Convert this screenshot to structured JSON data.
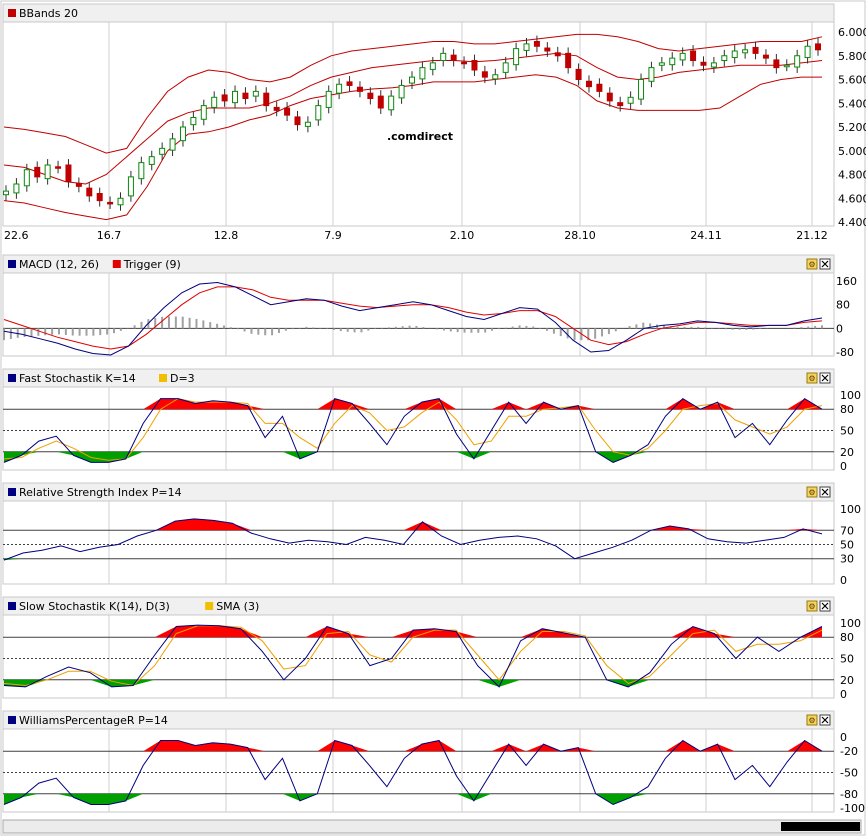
{
  "colors": {
    "frame": "#c8c8c8",
    "header_bg": "#f0f0f0",
    "grid": "#d0d0d0",
    "bb_line": "#c00000",
    "candle_up": "#0a8a0a",
    "candle_down": "#c00000",
    "macd": "#000080",
    "trigger": "#e00000",
    "hist": "#a0a0a0",
    "osc": "#000080",
    "signal": "#f0a000",
    "fill_high": "#ff0000",
    "fill_low": "#00a000",
    "watermark": "#e6ddd0"
  },
  "watermark": ".comdirect",
  "x_labels": [
    "22.6",
    "16.7",
    "12.8",
    "7.9",
    "2.10",
    "28.10",
    "24.11",
    "21.12"
  ],
  "panels": [
    {
      "id": "bbands",
      "legend": [
        {
          "label": "BBands 20",
          "color": "#c00000"
        }
      ],
      "yticks": [
        "6.000",
        "5.800",
        "5.600",
        "5.400",
        "5.200",
        "5.000",
        "4.800",
        "4.600",
        "4.400"
      ],
      "buttons": false
    },
    {
      "id": "macd",
      "legend": [
        {
          "label": "MACD (12, 26)",
          "color": "#000080"
        },
        {
          "label": "Trigger (9)",
          "color": "#e00000"
        }
      ],
      "yticks": [
        "160",
        "80",
        "0",
        "-80"
      ],
      "buttons": true
    },
    {
      "id": "fstoch",
      "legend": [
        {
          "label": "Fast Stochastik K=14",
          "color": "#000080"
        },
        {
          "label": "D=3",
          "color": "#f0c000"
        }
      ],
      "yticks": [
        "100",
        "80",
        "50",
        "20",
        "0"
      ],
      "buttons": true
    },
    {
      "id": "rsi",
      "legend": [
        {
          "label": "Relative Strength Index P=14",
          "color": "#000080"
        }
      ],
      "yticks": [
        "100",
        "70",
        "50",
        "30",
        "0"
      ],
      "buttons": true
    },
    {
      "id": "sstoch",
      "legend": [
        {
          "label": "Slow Stochastik K(14), D(3)",
          "color": "#000080"
        },
        {
          "label": "SMA (3)",
          "color": "#f0c000"
        }
      ],
      "yticks": [
        "100",
        "80",
        "50",
        "20",
        "0"
      ],
      "buttons": true
    },
    {
      "id": "willr",
      "legend": [
        {
          "label": "WilliamsPercentageR P=14",
          "color": "#000080"
        }
      ],
      "yticks": [
        "0",
        "-20",
        "-50",
        "-80",
        "-100"
      ],
      "buttons": true
    }
  ],
  "chart_data": [
    {
      "type": "candlestick",
      "title": "BBands 20",
      "ylim": [
        4.4,
        6.0
      ],
      "x_labels": [
        "22.6",
        "16.7",
        "12.8",
        "7.9",
        "2.10",
        "28.10",
        "24.11",
        "21.12"
      ],
      "close": [
        4.66,
        4.72,
        4.84,
        4.78,
        4.88,
        4.86,
        4.74,
        4.7,
        4.62,
        4.58,
        4.56,
        4.6,
        4.78,
        4.9,
        4.95,
        5.02,
        5.1,
        5.2,
        5.28,
        5.38,
        5.45,
        5.42,
        5.5,
        5.44,
        5.5,
        5.38,
        5.34,
        5.3,
        5.22,
        5.24,
        5.38,
        5.5,
        5.56,
        5.55,
        5.5,
        5.44,
        5.36,
        5.46,
        5.55,
        5.62,
        5.7,
        5.74,
        5.82,
        5.76,
        5.74,
        5.68,
        5.62,
        5.64,
        5.74,
        5.86,
        5.9,
        5.88,
        5.84,
        5.8,
        5.7,
        5.6,
        5.54,
        5.5,
        5.42,
        5.38,
        5.45,
        5.6,
        5.7,
        5.74,
        5.78,
        5.82,
        5.76,
        5.72,
        5.74,
        5.8,
        5.84,
        5.85,
        5.82,
        5.78,
        5.7,
        5.72,
        5.8,
        5.88,
        5.85
      ],
      "bb_upper": [
        5.2,
        5.18,
        5.15,
        5.12,
        5.05,
        4.98,
        5.02,
        5.28,
        5.5,
        5.62,
        5.68,
        5.66,
        5.6,
        5.58,
        5.62,
        5.72,
        5.8,
        5.84,
        5.86,
        5.88,
        5.9,
        5.92,
        5.92,
        5.9,
        5.9,
        5.92,
        5.94,
        5.96,
        5.98,
        5.98,
        5.96,
        5.92,
        5.86,
        5.84,
        5.86,
        5.88,
        5.9,
        5.92,
        5.92,
        5.92,
        5.96
      ],
      "bb_middle": [
        4.88,
        4.86,
        4.8,
        4.74,
        4.72,
        4.8,
        4.95,
        5.1,
        5.25,
        5.32,
        5.36,
        5.36,
        5.36,
        5.4,
        5.46,
        5.55,
        5.62,
        5.66,
        5.7,
        5.72,
        5.74,
        5.76,
        5.76,
        5.75,
        5.76,
        5.78,
        5.8,
        5.82,
        5.8,
        5.7,
        5.62,
        5.6,
        5.62,
        5.66,
        5.68,
        5.7,
        5.72,
        5.72,
        5.72,
        5.74,
        5.76
      ],
      "bb_lower": [
        4.58,
        4.56,
        4.52,
        4.48,
        4.45,
        4.42,
        4.46,
        4.7,
        5.0,
        5.14,
        5.16,
        5.2,
        5.26,
        5.3,
        5.38,
        5.44,
        5.47,
        5.5,
        5.52,
        5.53,
        5.55,
        5.58,
        5.58,
        5.58,
        5.6,
        5.62,
        5.64,
        5.62,
        5.55,
        5.42,
        5.36,
        5.34,
        5.34,
        5.34,
        5.34,
        5.36,
        5.46,
        5.56,
        5.6,
        5.62,
        5.62
      ]
    },
    {
      "type": "line",
      "title": "MACD (12, 26) / Trigger (9)",
      "ylim": [
        -80,
        160
      ],
      "series": [
        {
          "name": "MACD (12, 26)",
          "values": [
            -10,
            -20,
            -35,
            -50,
            -70,
            -85,
            -90,
            -60,
            10,
            70,
            120,
            150,
            155,
            140,
            110,
            80,
            90,
            100,
            95,
            75,
            60,
            70,
            80,
            90,
            80,
            60,
            40,
            30,
            50,
            70,
            65,
            20,
            -40,
            -80,
            -75,
            -40,
            0,
            10,
            15,
            25,
            20,
            10,
            5,
            10,
            10,
            25,
            35
          ]
        },
        {
          "name": "Trigger (9)",
          "values": [
            30,
            10,
            -10,
            -30,
            -45,
            -60,
            -70,
            -60,
            -20,
            30,
            80,
            120,
            140,
            140,
            130,
            105,
            95,
            95,
            95,
            85,
            75,
            70,
            75,
            80,
            80,
            70,
            55,
            45,
            50,
            60,
            60,
            40,
            0,
            -40,
            -55,
            -45,
            -20,
            0,
            10,
            20,
            20,
            15,
            10,
            10,
            10,
            20,
            25
          ]
        }
      ]
    },
    {
      "type": "line",
      "title": "Fast Stochastik K=14 D=3",
      "ylim": [
        0,
        100
      ],
      "series": [
        {
          "name": "Fast Stochastik K=14",
          "values": [
            5,
            15,
            35,
            42,
            15,
            5,
            5,
            10,
            60,
            95,
            95,
            88,
            92,
            90,
            85,
            40,
            70,
            10,
            20,
            95,
            88,
            60,
            30,
            70,
            90,
            95,
            45,
            10,
            50,
            90,
            60,
            90,
            80,
            85,
            20,
            5,
            15,
            30,
            70,
            95,
            80,
            90,
            40,
            60,
            30,
            65,
            95,
            80
          ]
        },
        {
          "name": "D=3",
          "values": [
            10,
            12,
            25,
            35,
            25,
            12,
            8,
            10,
            40,
            80,
            95,
            90,
            90,
            90,
            88,
            60,
            60,
            40,
            25,
            60,
            85,
            75,
            50,
            55,
            75,
            90,
            65,
            30,
            35,
            70,
            70,
            80,
            82,
            85,
            50,
            20,
            15,
            25,
            50,
            80,
            85,
            88,
            65,
            55,
            45,
            55,
            80,
            85
          ]
        }
      ]
    },
    {
      "type": "line",
      "title": "Relative Strength Index P=14",
      "ylim": [
        0,
        100
      ],
      "series": [
        {
          "name": "Relative Strength Index P=14",
          "values": [
            28,
            38,
            42,
            48,
            40,
            46,
            50,
            62,
            70,
            83,
            86,
            84,
            80,
            66,
            58,
            52,
            56,
            54,
            50,
            60,
            56,
            50,
            82,
            62,
            50,
            56,
            60,
            62,
            58,
            48,
            30,
            38,
            46,
            56,
            70,
            76,
            72,
            58,
            54,
            52,
            56,
            60,
            72,
            65
          ]
        }
      ]
    },
    {
      "type": "line",
      "title": "Slow Stochastik K(14), D(3) / SMA (3)",
      "ylim": [
        0,
        100
      ],
      "series": [
        {
          "name": "Slow Stochastik K(14), D(3)",
          "values": [
            12,
            10,
            25,
            38,
            30,
            10,
            12,
            55,
            95,
            97,
            96,
            92,
            60,
            20,
            50,
            95,
            85,
            40,
            50,
            90,
            92,
            88,
            40,
            10,
            75,
            92,
            86,
            80,
            20,
            10,
            30,
            70,
            95,
            85,
            50,
            80,
            60,
            80,
            95
          ]
        },
        {
          "name": "SMA (3)",
          "values": [
            15,
            12,
            20,
            32,
            32,
            18,
            12,
            40,
            85,
            96,
            96,
            94,
            75,
            35,
            40,
            85,
            88,
            55,
            45,
            80,
            90,
            90,
            55,
            20,
            60,
            88,
            88,
            82,
            40,
            15,
            25,
            55,
            85,
            90,
            60,
            70,
            70,
            75,
            90
          ]
        }
      ]
    },
    {
      "type": "line",
      "title": "WilliamsPercentageR P=14",
      "ylim": [
        -100,
        0
      ],
      "series": [
        {
          "name": "WilliamsPercentageR P=14",
          "values": [
            -95,
            -85,
            -65,
            -58,
            -85,
            -95,
            -95,
            -90,
            -40,
            -5,
            -5,
            -12,
            -8,
            -10,
            -15,
            -60,
            -30,
            -90,
            -80,
            -5,
            -12,
            -40,
            -70,
            -30,
            -10,
            -5,
            -55,
            -90,
            -50,
            -10,
            -40,
            -10,
            -20,
            -15,
            -80,
            -95,
            -85,
            -70,
            -30,
            -5,
            -20,
            -10,
            -60,
            -40,
            -70,
            -35,
            -5,
            -20
          ]
        }
      ]
    }
  ]
}
